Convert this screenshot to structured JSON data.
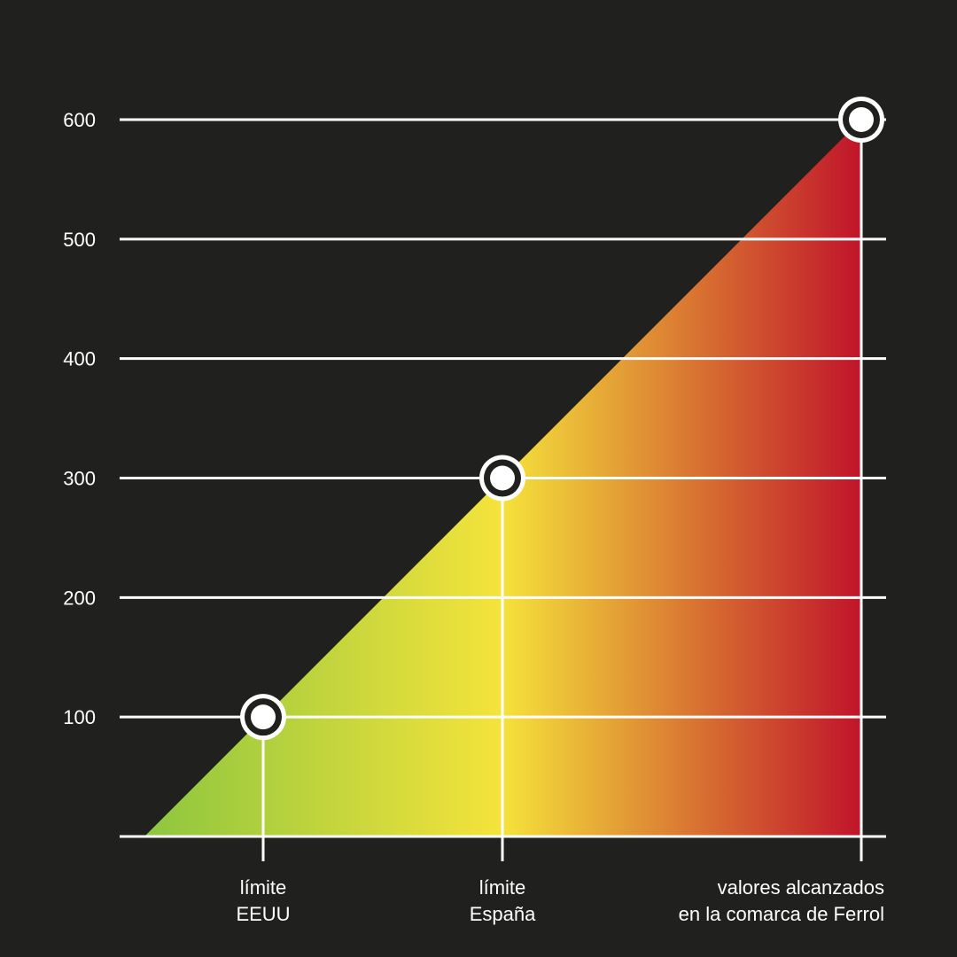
{
  "chart_data": {
    "type": "area",
    "title": "",
    "xlabel": "",
    "ylabel": "",
    "ylim": [
      0,
      600
    ],
    "y_ticks": [
      100,
      200,
      300,
      400,
      500,
      600
    ],
    "grid": true,
    "points": [
      {
        "lines": [
          "límite",
          "EEUU"
        ],
        "value": 100
      },
      {
        "lines": [
          "límite",
          "España"
        ],
        "value": 300
      },
      {
        "lines": [
          "valores alcanzados",
          "en la comarca de Ferrol"
        ],
        "value": 600
      }
    ],
    "gradient_colors": [
      "#8cc63f",
      "#f5e33b",
      "#c0142a"
    ]
  }
}
